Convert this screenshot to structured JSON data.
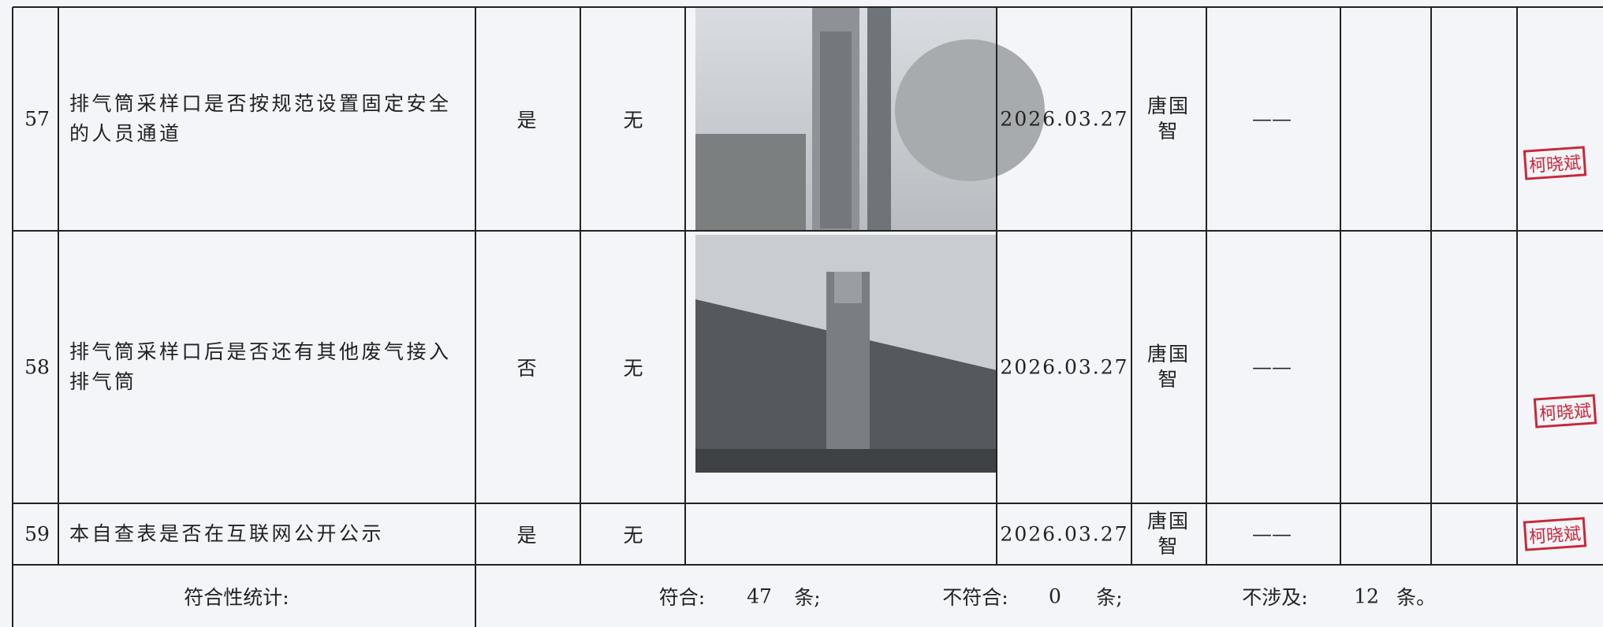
{
  "table": {
    "rows": [
      {
        "number": "57",
        "item": "排气筒采样口是否按规范设置固定安全的人员通道",
        "result": "是",
        "issue": "无",
        "date": "2026.03.27",
        "person": "唐国智",
        "remark": "——",
        "stamp": "柯晓斌"
      },
      {
        "number": "58",
        "item": "排气筒采样口后是否还有其他废气接入排气筒",
        "result": "否",
        "issue": "无",
        "date": "2026.03.27",
        "person": "唐国智",
        "remark": "——",
        "stamp": "柯晓斌"
      },
      {
        "number": "59",
        "item": "本自查表是否在互联网公开公示",
        "result": "是",
        "issue": "无",
        "date": "2026.03.27",
        "person": "唐国智",
        "remark": "——",
        "stamp": "柯晓斌"
      }
    ],
    "summary": {
      "label": "符合性统计:",
      "conform_label": "符合:",
      "conform": "47",
      "conform_unit": "条;",
      "nonconform_label": "不符合:",
      "nonconform": "0",
      "nonconform_unit": "条;",
      "na_label": "不涉及:",
      "na": "12",
      "na_unit": "条。"
    }
  }
}
